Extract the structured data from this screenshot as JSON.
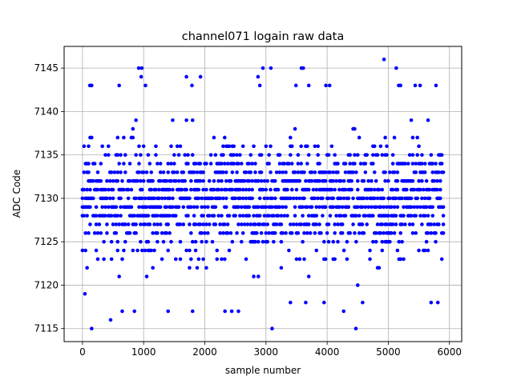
{
  "chart_data": {
    "type": "scatter",
    "title": "channel071 logain raw data",
    "xlabel": "sample number",
    "ylabel": "ADC Code",
    "xlim": [
      -300,
      6200
    ],
    "ylim": [
      7113.5,
      7147.5
    ],
    "xticks": [
      0,
      1000,
      2000,
      3000,
      4000,
      5000,
      6000
    ],
    "yticks": [
      7115,
      7120,
      7125,
      7130,
      7135,
      7140,
      7145
    ],
    "grid": true,
    "marker_color": "#0000ff",
    "series": [
      {
        "x_start": 0,
        "x_end": 5900,
        "x_step": 25,
        "y_min": 7115,
        "y_max": 7146,
        "center": 7130,
        "description_values": "dense integer-valued samples concentrated between 7121 and 7137",
        "outliers": [
          {
            "x": 150,
            "y": 7115
          },
          {
            "x": 460,
            "y": 7116
          },
          {
            "x": 3100,
            "y": 7115
          },
          {
            "x": 4470,
            "y": 7115
          },
          {
            "x": 4930,
            "y": 7146
          },
          {
            "x": 5130,
            "y": 7145
          },
          {
            "x": 920,
            "y": 7145
          },
          {
            "x": 970,
            "y": 7145
          },
          {
            "x": 2950,
            "y": 7145
          },
          {
            "x": 3080,
            "y": 7145
          },
          {
            "x": 3580,
            "y": 7145
          },
          {
            "x": 3610,
            "y": 7145
          },
          {
            "x": 1700,
            "y": 7144
          },
          {
            "x": 1930,
            "y": 7144
          },
          {
            "x": 2870,
            "y": 7144
          },
          {
            "x": 960,
            "y": 7144
          },
          {
            "x": 120,
            "y": 7143
          },
          {
            "x": 150,
            "y": 7143
          },
          {
            "x": 600,
            "y": 7143
          },
          {
            "x": 1030,
            "y": 7143
          },
          {
            "x": 1790,
            "y": 7143
          },
          {
            "x": 2900,
            "y": 7143
          },
          {
            "x": 3490,
            "y": 7143
          },
          {
            "x": 3700,
            "y": 7143
          },
          {
            "x": 3980,
            "y": 7143
          },
          {
            "x": 4040,
            "y": 7143
          },
          {
            "x": 5170,
            "y": 7143
          },
          {
            "x": 5200,
            "y": 7143
          },
          {
            "x": 5440,
            "y": 7143
          },
          {
            "x": 5520,
            "y": 7143
          },
          {
            "x": 5780,
            "y": 7143
          },
          {
            "x": 40,
            "y": 7119
          },
          {
            "x": 1400,
            "y": 7117
          },
          {
            "x": 1800,
            "y": 7117
          },
          {
            "x": 2330,
            "y": 7117
          },
          {
            "x": 2440,
            "y": 7117
          },
          {
            "x": 2550,
            "y": 7117
          },
          {
            "x": 650,
            "y": 7117
          },
          {
            "x": 850,
            "y": 7117
          },
          {
            "x": 4270,
            "y": 7117
          },
          {
            "x": 3400,
            "y": 7118
          },
          {
            "x": 3650,
            "y": 7118
          },
          {
            "x": 3950,
            "y": 7118
          },
          {
            "x": 4580,
            "y": 7118
          },
          {
            "x": 5700,
            "y": 7118
          },
          {
            "x": 5810,
            "y": 7118
          }
        ]
      }
    ]
  }
}
